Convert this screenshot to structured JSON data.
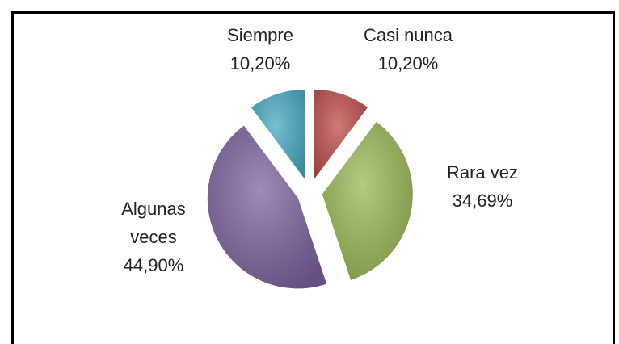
{
  "chart_data": {
    "type": "pie",
    "categories": [
      "Casi nunca",
      "Rara vez",
      "Algunas veces",
      "Siempre"
    ],
    "values": [
      10.2,
      34.69,
      44.9,
      10.2
    ],
    "value_labels": [
      "10,20%",
      "34,69%",
      "44,90%",
      "10,20%"
    ],
    "colors": [
      "#c0504d",
      "#9bbb59",
      "#8064a2",
      "#4bacc6"
    ]
  }
}
